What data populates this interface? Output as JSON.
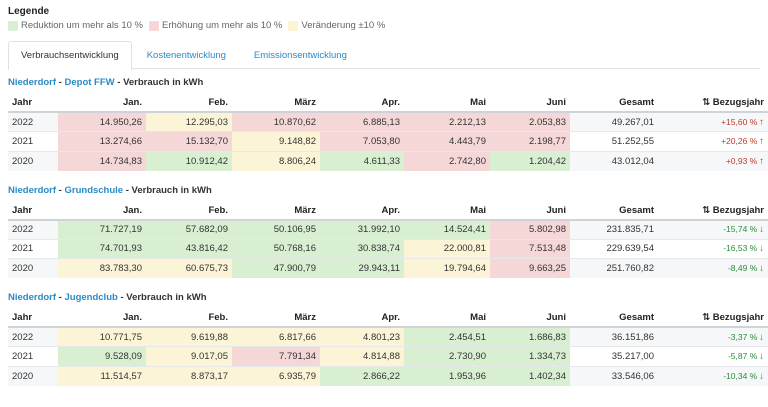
{
  "legend": {
    "title": "Legende",
    "items": [
      {
        "label": "Reduktion um mehr als 10 %",
        "color": "#d9efd2"
      },
      {
        "label": "Erhöhung um mehr als 10 %",
        "color": "#f5d7d8"
      },
      {
        "label": "Veränderung ±10 %",
        "color": "#fbf4d6"
      }
    ]
  },
  "tabs": [
    {
      "label": "Verbrauchsentwicklung",
      "active": true
    },
    {
      "label": "Kostenentwicklung",
      "active": false
    },
    {
      "label": "Emissionsentwicklung",
      "active": false
    }
  ],
  "columns": [
    "Jahr",
    "Jan.",
    "Feb.",
    "März",
    "Apr.",
    "Mai",
    "Juni",
    "Gesamt",
    "⇅ Bezugsjahr"
  ],
  "sections": [
    {
      "location": "Niederdorf",
      "separator": " - ",
      "site": "Depot FFW",
      "suffix": " - Verbrauch in kWh",
      "rows": [
        {
          "year": "2022",
          "cells": [
            "14.950,26",
            "12.295,03",
            "10.870,62",
            "6.885,13",
            "2.212,13",
            "2.053,83"
          ],
          "classes": [
            "r",
            "y",
            "r",
            "r",
            "r",
            "r"
          ],
          "total": "49.267,01",
          "pct": "+15,60 %",
          "arrow": "↑",
          "dir": "up"
        },
        {
          "year": "2021",
          "cells": [
            "13.274,66",
            "15.132,70",
            "9.148,82",
            "7.053,80",
            "4.443,79",
            "2.198,77"
          ],
          "classes": [
            "r",
            "r",
            "y",
            "r",
            "r",
            "r"
          ],
          "total": "51.252,55",
          "pct": "+20,26 %",
          "arrow": "↑",
          "dir": "up"
        },
        {
          "year": "2020",
          "cells": [
            "14.734,83",
            "10.912,42",
            "8.806,24",
            "4.611,33",
            "2.742,80",
            "1.204,42"
          ],
          "classes": [
            "r",
            "g",
            "y",
            "g",
            "r",
            "g"
          ],
          "total": "43.012,04",
          "pct": "+0,93 %",
          "arrow": "↑",
          "dir": "up"
        }
      ]
    },
    {
      "location": "Niederdorf",
      "separator": " - ",
      "site": "Grundschule",
      "suffix": " - Verbrauch in kWh",
      "rows": [
        {
          "year": "2022",
          "cells": [
            "71.727,19",
            "57.682,09",
            "50.106,95",
            "31.992,10",
            "14.524,41",
            "5.802,98"
          ],
          "classes": [
            "g",
            "g",
            "g",
            "g",
            "g",
            "r"
          ],
          "total": "231.835,71",
          "pct": "-15,74 %",
          "arrow": "↓",
          "dir": "down"
        },
        {
          "year": "2021",
          "cells": [
            "74.701,93",
            "43.816,42",
            "50.768,16",
            "30.838,74",
            "22.000,81",
            "7.513,48"
          ],
          "classes": [
            "g",
            "g",
            "g",
            "g",
            "y",
            "r"
          ],
          "total": "229.639,54",
          "pct": "-16,53 %",
          "arrow": "↓",
          "dir": "down"
        },
        {
          "year": "2020",
          "cells": [
            "83.783,30",
            "60.675,73",
            "47.900,79",
            "29.943,11",
            "19.794,64",
            "9.663,25"
          ],
          "classes": [
            "y",
            "y",
            "g",
            "g",
            "y",
            "r"
          ],
          "total": "251.760,82",
          "pct": "-8,49 %",
          "arrow": "↓",
          "dir": "down"
        }
      ]
    },
    {
      "location": "Niederdorf",
      "separator": " - ",
      "site": "Jugendclub",
      "suffix": " - Verbrauch in kWh",
      "rows": [
        {
          "year": "2022",
          "cells": [
            "10.771,75",
            "9.619,88",
            "6.817,66",
            "4.801,23",
            "2.454,51",
            "1.686,83"
          ],
          "classes": [
            "y",
            "y",
            "y",
            "y",
            "g",
            "g"
          ],
          "total": "36.151,86",
          "pct": "-3,37 %",
          "arrow": "↓",
          "dir": "down"
        },
        {
          "year": "2021",
          "cells": [
            "9.528,09",
            "9.017,05",
            "7.791,34",
            "4.814,88",
            "2.730,90",
            "1.334,73"
          ],
          "classes": [
            "g",
            "y",
            "r",
            "y",
            "g",
            "g"
          ],
          "total": "35.217,00",
          "pct": "-5,87 %",
          "arrow": "↓",
          "dir": "down"
        },
        {
          "year": "2020",
          "cells": [
            "11.514,57",
            "8.873,17",
            "6.935,79",
            "2.866,22",
            "1.953,96",
            "1.402,34"
          ],
          "classes": [
            "y",
            "y",
            "y",
            "g",
            "g",
            "g"
          ],
          "total": "33.546,06",
          "pct": "-10,34 %",
          "arrow": "↓",
          "dir": "down"
        }
      ]
    }
  ]
}
